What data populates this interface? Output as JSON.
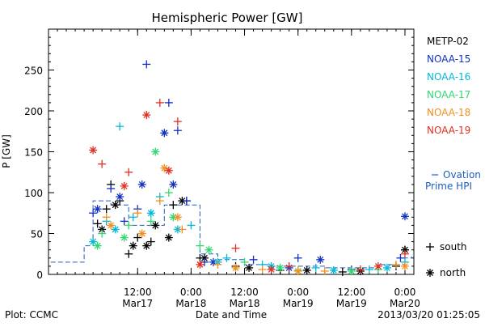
{
  "footer": {
    "plot_credit": "Plot: CCMC",
    "timestamp": "2013/03/20 01:25:05"
  },
  "chart_data": {
    "type": "scatter",
    "title": "Hemispheric Power [GW]",
    "xlabel": "Date and Time",
    "ylabel": "P [GW]",
    "xlim": [
      "2013-03-16T16:00",
      "2013-03-20T02:00"
    ],
    "ylim": [
      0,
      300
    ],
    "yticks": [
      0,
      50,
      100,
      150,
      200,
      250
    ],
    "xticks": [
      {
        "at": "2013-03-17T12:00",
        "time": "12:00",
        "date": "Mar17"
      },
      {
        "at": "2013-03-18T00:00",
        "time": "0:00",
        "date": "Mar18"
      },
      {
        "at": "2013-03-18T12:00",
        "time": "12:00",
        "date": "Mar18"
      },
      {
        "at": "2013-03-19T00:00",
        "time": "0:00",
        "date": "Mar19"
      },
      {
        "at": "2013-03-19T12:00",
        "time": "12:00",
        "date": "Mar19"
      },
      {
        "at": "2013-03-20T00:00",
        "time": "0:00",
        "date": "Mar20"
      }
    ],
    "marker_legend": [
      {
        "symbol": "+",
        "label": "south"
      },
      {
        "symbol": "*",
        "label": "north"
      }
    ],
    "ovation": {
      "label_line1": "Ovation",
      "label_line2": "Prime HPI",
      "color": "#1f5fbf",
      "points": [
        [
          "2013-03-16T16:30",
          15
        ],
        [
          "2013-03-16T20:00",
          15
        ],
        [
          "2013-03-17T00:00",
          35
        ],
        [
          "2013-03-17T02:00",
          90
        ],
        [
          "2013-03-17T06:00",
          85
        ],
        [
          "2013-03-17T10:00",
          60
        ],
        [
          "2013-03-17T14:00",
          60
        ],
        [
          "2013-03-17T18:00",
          85
        ],
        [
          "2013-03-17T22:00",
          85
        ],
        [
          "2013-03-18T02:00",
          25
        ],
        [
          "2013-03-18T06:00",
          18
        ],
        [
          "2013-03-18T12:00",
          12
        ],
        [
          "2013-03-18T18:00",
          10
        ],
        [
          "2013-03-19T00:00",
          10
        ],
        [
          "2013-03-19T06:00",
          8
        ],
        [
          "2013-03-19T12:00",
          8
        ],
        [
          "2013-03-19T18:00",
          12
        ],
        [
          "2013-03-20T00:00",
          20
        ],
        [
          "2013-03-20T01:30",
          22
        ]
      ]
    },
    "series": [
      {
        "name": "METP-02",
        "color": "#000000",
        "south": [
          [
            "2013-03-17T03:00",
            62
          ],
          [
            "2013-03-17T05:00",
            80
          ],
          [
            "2013-03-17T06:00",
            110
          ],
          [
            "2013-03-17T08:00",
            90
          ],
          [
            "2013-03-17T10:00",
            25
          ],
          [
            "2013-03-17T12:00",
            45
          ],
          [
            "2013-03-17T15:00",
            40
          ],
          [
            "2013-03-17T20:00",
            85
          ],
          [
            "2013-03-17T23:00",
            90
          ],
          [
            "2013-03-18T02:00",
            20
          ],
          [
            "2013-03-18T10:00",
            10
          ],
          [
            "2013-03-18T20:00",
            5
          ],
          [
            "2013-03-19T10:00",
            3
          ],
          [
            "2013-03-19T22:00",
            10
          ],
          [
            "2013-03-20T00:00",
            30
          ]
        ],
        "north": [
          [
            "2013-03-17T04:00",
            55
          ],
          [
            "2013-03-17T07:00",
            85
          ],
          [
            "2013-03-17T11:00",
            35
          ],
          [
            "2013-03-17T14:00",
            35
          ],
          [
            "2013-03-17T16:00",
            60
          ],
          [
            "2013-03-17T19:00",
            45
          ],
          [
            "2013-03-17T22:00",
            90
          ],
          [
            "2013-03-18T03:00",
            20
          ],
          [
            "2013-03-18T13:00",
            8
          ],
          [
            "2013-03-19T02:00",
            5
          ],
          [
            "2013-03-19T14:00",
            4
          ],
          [
            "2013-03-20T00:00",
            30
          ]
        ]
      },
      {
        "name": "NOAA-15",
        "color": "#1030c0",
        "south": [
          [
            "2013-03-17T02:00",
            75
          ],
          [
            "2013-03-17T06:00",
            105
          ],
          [
            "2013-03-17T09:00",
            65
          ],
          [
            "2013-03-17T12:00",
            80
          ],
          [
            "2013-03-17T14:00",
            257
          ],
          [
            "2013-03-17T19:00",
            210
          ],
          [
            "2013-03-17T21:00",
            176
          ],
          [
            "2013-03-17T23:00",
            90
          ],
          [
            "2013-03-18T03:00",
            15
          ],
          [
            "2013-03-18T14:00",
            18
          ],
          [
            "2013-03-19T00:00",
            20
          ],
          [
            "2013-03-19T12:00",
            6
          ],
          [
            "2013-03-19T23:00",
            20
          ]
        ],
        "north": [
          [
            "2013-03-17T03:00",
            80
          ],
          [
            "2013-03-17T08:00",
            95
          ],
          [
            "2013-03-17T13:00",
            110
          ],
          [
            "2013-03-17T18:00",
            173
          ],
          [
            "2013-03-17T20:00",
            110
          ],
          [
            "2013-03-18T05:00",
            15
          ],
          [
            "2013-03-18T22:00",
            8
          ],
          [
            "2013-03-19T05:00",
            18
          ],
          [
            "2013-03-20T00:00",
            71
          ]
        ]
      },
      {
        "name": "NOAA-16",
        "color": "#00b8d8",
        "south": [
          [
            "2013-03-17T05:00",
            65
          ],
          [
            "2013-03-17T08:00",
            181
          ],
          [
            "2013-03-17T11:00",
            70
          ],
          [
            "2013-03-17T17:00",
            95
          ],
          [
            "2013-03-18T00:00",
            60
          ],
          [
            "2013-03-18T08:00",
            20
          ],
          [
            "2013-03-18T16:00",
            12
          ],
          [
            "2013-03-19T04:00",
            8
          ],
          [
            "2013-03-19T16:00",
            6
          ],
          [
            "2013-03-20T00:00",
            15
          ]
        ],
        "north": [
          [
            "2013-03-17T02:00",
            40
          ],
          [
            "2013-03-17T07:00",
            55
          ],
          [
            "2013-03-17T15:00",
            75
          ],
          [
            "2013-03-17T21:00",
            55
          ],
          [
            "2013-03-18T06:00",
            15
          ],
          [
            "2013-03-18T18:00",
            10
          ],
          [
            "2013-03-19T08:00",
            5
          ],
          [
            "2013-03-19T20:00",
            8
          ]
        ]
      },
      {
        "name": "NOAA-17",
        "color": "#30d870",
        "south": [
          [
            "2013-03-17T04:00",
            50
          ],
          [
            "2013-03-17T10:00",
            60
          ],
          [
            "2013-03-17T15:00",
            65
          ],
          [
            "2013-03-17T19:00",
            100
          ],
          [
            "2013-03-18T02:00",
            35
          ],
          [
            "2013-03-18T12:00",
            15
          ],
          [
            "2013-03-19T00:00",
            5
          ],
          [
            "2013-03-19T18:00",
            6
          ]
        ],
        "north": [
          [
            "2013-03-17T03:00",
            35
          ],
          [
            "2013-03-17T09:00",
            45
          ],
          [
            "2013-03-17T16:00",
            150
          ],
          [
            "2013-03-17T20:00",
            70
          ],
          [
            "2013-03-18T04:00",
            30
          ],
          [
            "2013-03-18T20:00",
            8
          ],
          [
            "2013-03-19T12:00",
            4
          ]
        ]
      },
      {
        "name": "NOAA-18",
        "color": "#f09020",
        "south": [
          [
            "2013-03-17T05:00",
            70
          ],
          [
            "2013-03-17T12:00",
            75
          ],
          [
            "2013-03-17T17:00",
            90
          ],
          [
            "2013-03-17T22:00",
            55
          ],
          [
            "2013-03-18T06:00",
            12
          ],
          [
            "2013-03-18T16:00",
            6
          ],
          [
            "2013-03-19T06:00",
            4
          ],
          [
            "2013-03-19T22:00",
            12
          ]
        ],
        "north": [
          [
            "2013-03-17T06:00",
            60
          ],
          [
            "2013-03-17T13:00",
            50
          ],
          [
            "2013-03-17T18:00",
            130
          ],
          [
            "2013-03-17T21:00",
            70
          ],
          [
            "2013-03-18T10:00",
            8
          ],
          [
            "2013-03-19T00:00",
            4
          ],
          [
            "2013-03-20T00:00",
            10
          ]
        ]
      },
      {
        "name": "NOAA-19",
        "color": "#e03020",
        "south": [
          [
            "2013-03-17T04:00",
            135
          ],
          [
            "2013-03-17T10:00",
            125
          ],
          [
            "2013-03-17T17:00",
            210
          ],
          [
            "2013-03-17T21:00",
            187
          ],
          [
            "2013-03-18T10:00",
            32
          ],
          [
            "2013-03-18T22:00",
            10
          ],
          [
            "2013-03-19T14:00",
            6
          ],
          [
            "2013-03-20T00:00",
            25
          ]
        ],
        "north": [
          [
            "2013-03-17T02:00",
            152
          ],
          [
            "2013-03-17T09:00",
            108
          ],
          [
            "2013-03-17T14:00",
            195
          ],
          [
            "2013-03-17T19:00",
            127
          ],
          [
            "2013-03-18T02:00",
            12
          ],
          [
            "2013-03-18T18:00",
            6
          ],
          [
            "2013-03-19T18:00",
            10
          ]
        ]
      }
    ]
  }
}
